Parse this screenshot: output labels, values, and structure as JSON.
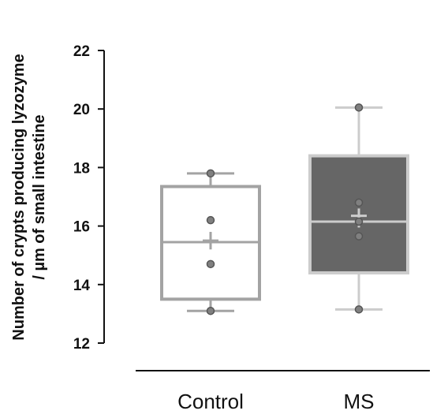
{
  "chart_data": {
    "type": "box",
    "title": "",
    "ylabel_line1": "Number of crypts producing lyzozyme",
    "ylabel_line2": "/ µm of small intestine",
    "xlabel": "",
    "ylim": [
      12,
      22
    ],
    "yticks": [
      12,
      14,
      16,
      18,
      20,
      22
    ],
    "ytick_labels": [
      "12",
      "14",
      "16",
      "18",
      "20",
      "22"
    ],
    "categories": [
      "Control",
      "MS"
    ],
    "groups": [
      {
        "category": "Control",
        "whisker_low": 13.1,
        "q1": 13.5,
        "median": 15.45,
        "q3": 17.35,
        "whisker_high": 17.8,
        "mean": 15.5,
        "sem_low": 15.2,
        "sem_high": 15.8,
        "points": [
          13.1,
          14.7,
          16.2,
          17.8
        ],
        "fill": "#ffffff",
        "stroke": "#a3a3a3",
        "whisker_color": "#a3a3a3"
      },
      {
        "category": "MS",
        "whisker_low": 13.15,
        "q1": 14.4,
        "median": 16.15,
        "q3": 18.4,
        "whisker_high": 20.05,
        "mean": 16.35,
        "sem_low": 15.95,
        "sem_high": 16.6,
        "points": [
          13.15,
          15.65,
          16.15,
          16.8,
          20.05
        ],
        "fill": "#666666",
        "stroke": "#cccccc",
        "whisker_color": "#cccccc"
      }
    ],
    "point_color": "#808080",
    "point_stroke": "#555555"
  }
}
